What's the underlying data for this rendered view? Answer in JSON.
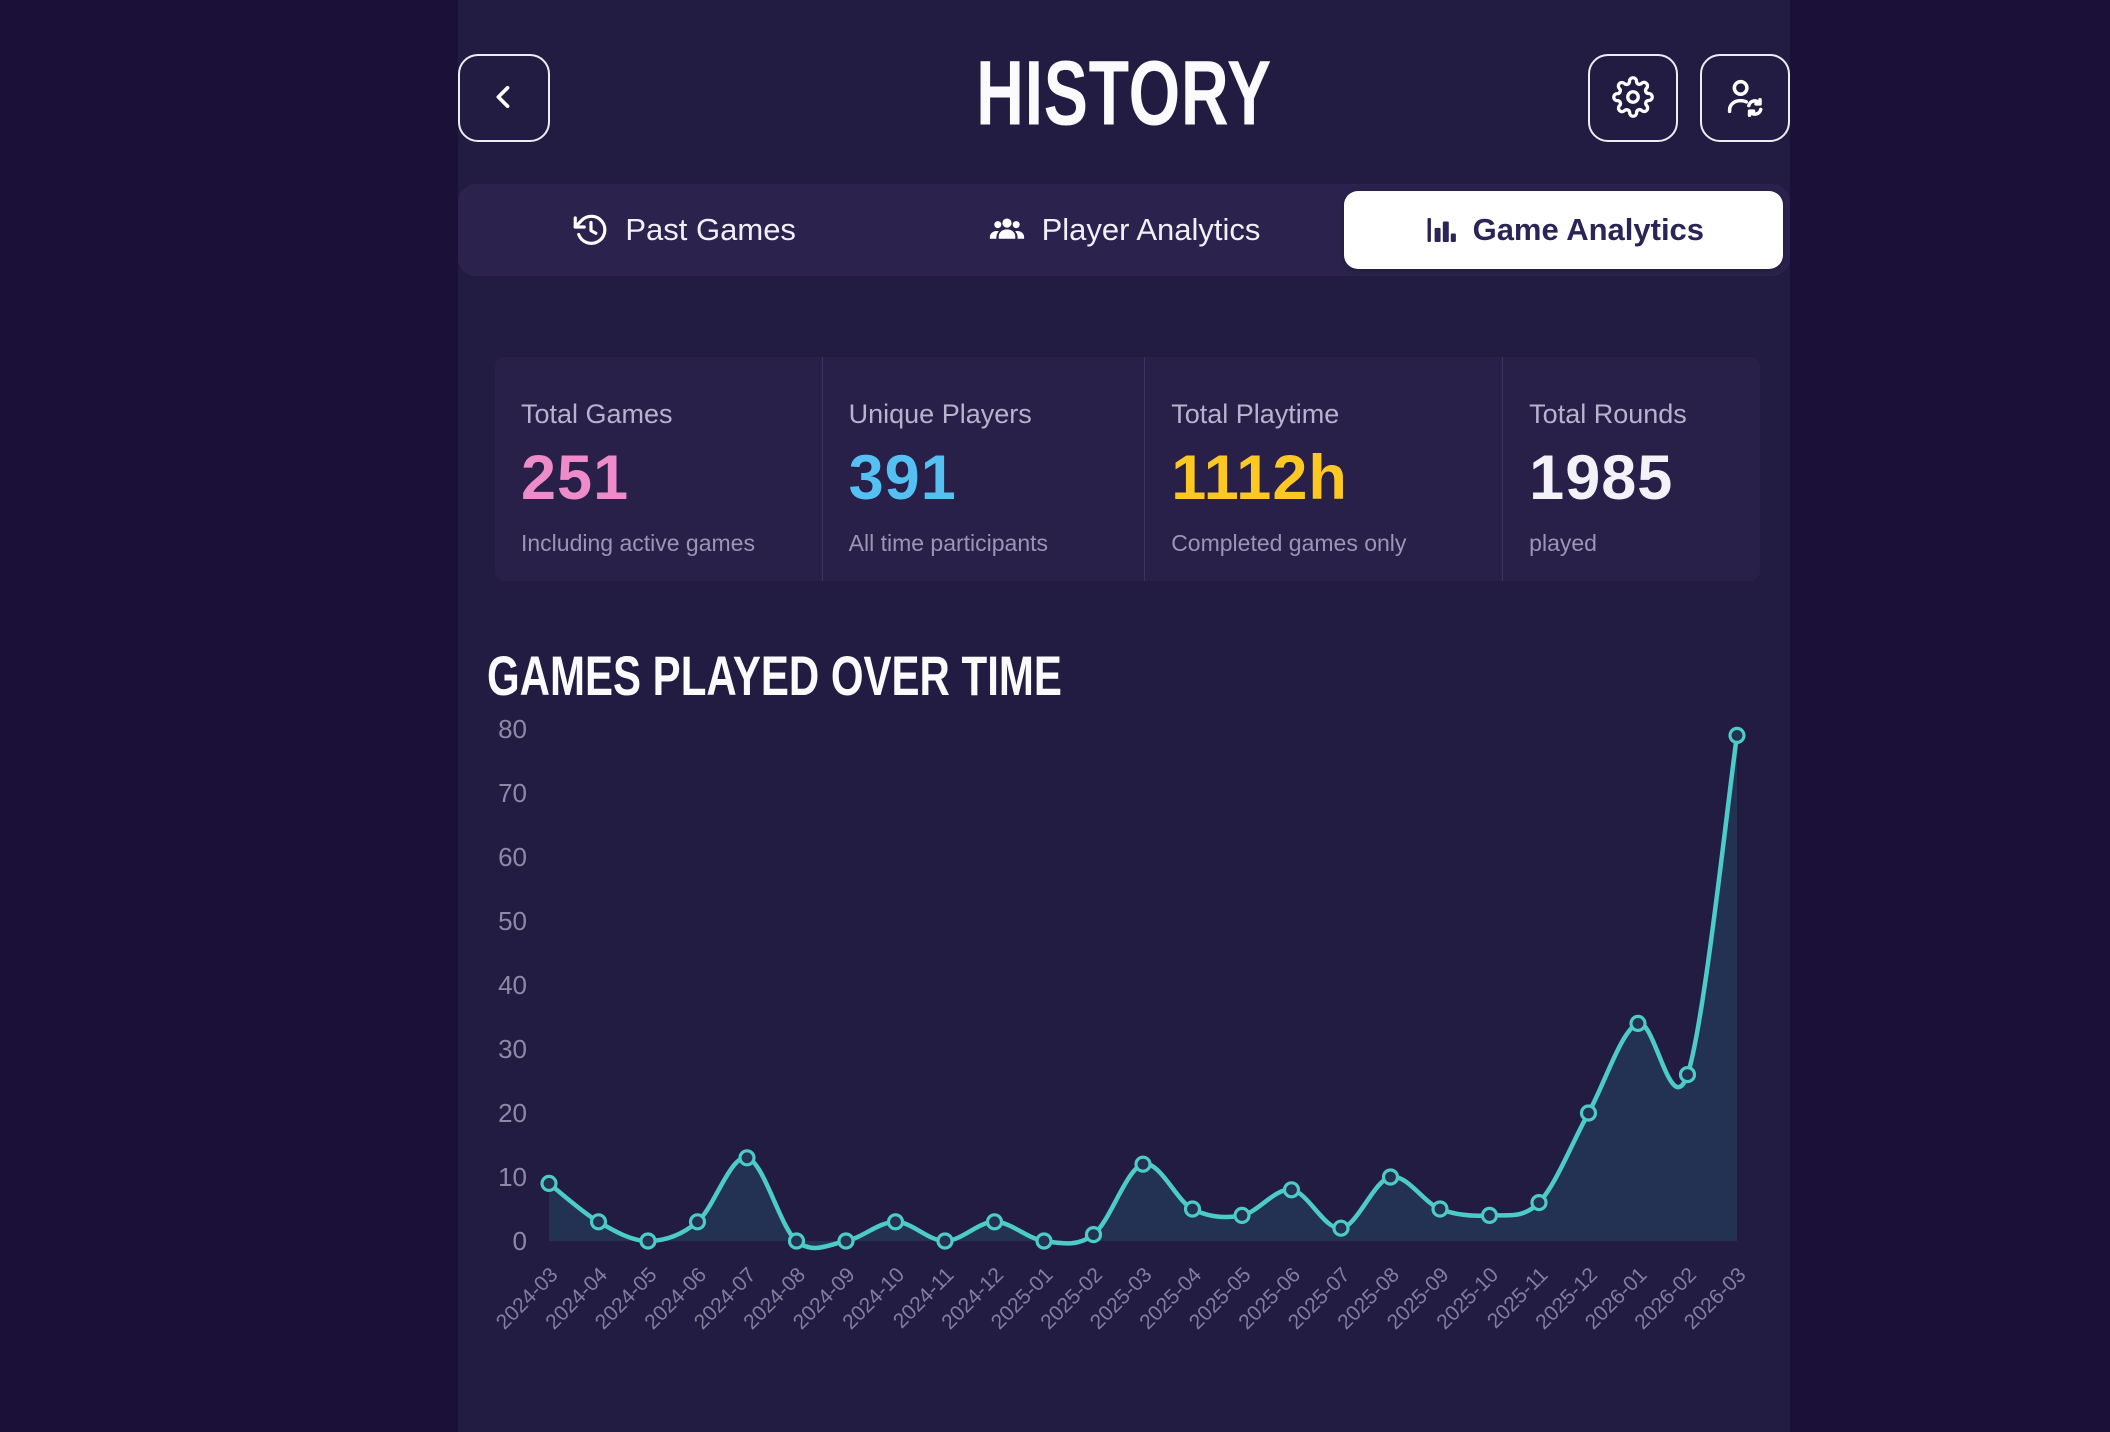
{
  "header": {
    "title": "HISTORY",
    "back_icon": "chevron-left-icon",
    "actions": [
      {
        "icon": "gear-icon",
        "name": "settings"
      },
      {
        "icon": "user-sync-icon",
        "name": "user-sync"
      }
    ]
  },
  "tabs": [
    {
      "label": "Past Games",
      "icon": "history-icon",
      "active": false
    },
    {
      "label": "Player Analytics",
      "icon": "people-icon",
      "active": false
    },
    {
      "label": "Game Analytics",
      "icon": "bar-chart-icon",
      "active": true
    }
  ],
  "stats": [
    {
      "label": "Total Games",
      "value": "251",
      "sub": "Including active games",
      "color": "#ee8bc9"
    },
    {
      "label": "Unique Players",
      "value": "391",
      "sub": "All time participants",
      "color": "#55c1f2"
    },
    {
      "label": "Total Playtime",
      "value": "1112h",
      "sub": "Completed games only",
      "color": "#fdc822"
    },
    {
      "label": "Total Rounds",
      "value": "1985",
      "sub": "played",
      "color": "#f3f2f8"
    }
  ],
  "section_title": "GAMES PLAYED OVER TIME",
  "chart_data": {
    "type": "area",
    "title": "Games Played Over Time",
    "x": [
      "2024-03",
      "2024-04",
      "2024-05",
      "2024-06",
      "2024-07",
      "2024-08",
      "2024-09",
      "2024-10",
      "2024-11",
      "2024-12",
      "2025-01",
      "2025-02",
      "2025-03",
      "2025-04",
      "2025-05",
      "2025-06",
      "2025-07",
      "2025-08",
      "2025-09",
      "2025-10",
      "2025-11",
      "2025-12",
      "2026-01",
      "2026-02",
      "2026-03"
    ],
    "values": [
      9,
      3,
      0,
      3,
      13,
      0,
      0,
      3,
      0,
      3,
      0,
      1,
      12,
      5,
      4,
      8,
      2,
      10,
      5,
      4,
      6,
      20,
      34,
      26,
      79
    ],
    "ylim": [
      0,
      80
    ],
    "ytick_step": 10,
    "grid": false,
    "legend": "none",
    "line_color": "#4ccbc9",
    "fill_color": "#233153",
    "point_fill": "#233153",
    "tick_color": "#8e89a6",
    "xlabel_color": "#837e9e"
  }
}
